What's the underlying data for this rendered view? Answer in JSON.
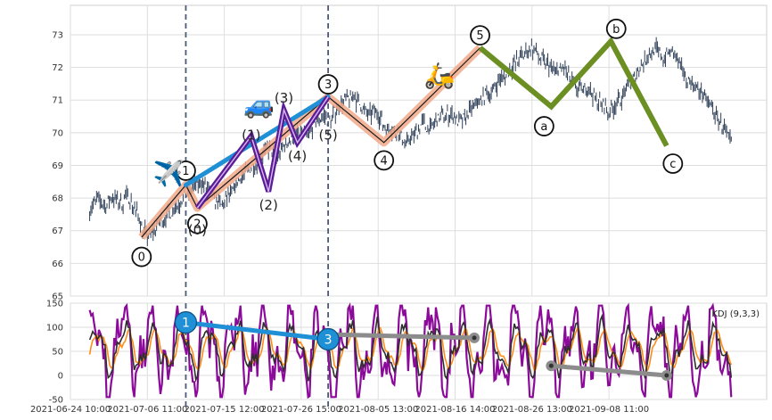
{
  "chart_data": {
    "type": "line",
    "title": "",
    "price_panel": {
      "ylim": [
        65,
        73.9
      ],
      "yticks": [
        "65",
        "66",
        "67",
        "68",
        "69",
        "70",
        "71",
        "72",
        "73"
      ],
      "grid": true,
      "price_series": [
        [
          0.0,
          67.7
        ],
        [
          0.4,
          67.95
        ],
        [
          0.8,
          67.7
        ],
        [
          1.2,
          68.05
        ],
        [
          1.6,
          67.8
        ],
        [
          2.0,
          68.1
        ],
        [
          2.4,
          67.6
        ],
        [
          2.7,
          67.2
        ],
        [
          3.0,
          66.8
        ],
        [
          3.3,
          67.0
        ],
        [
          3.7,
          67.3
        ],
        [
          4.1,
          67.5
        ],
        [
          4.5,
          67.75
        ],
        [
          4.9,
          68.0
        ],
        [
          5.4,
          68.3
        ],
        [
          5.8,
          68.5
        ],
        [
          6.2,
          68.2
        ],
        [
          6.6,
          67.9
        ],
        [
          6.9,
          67.75
        ],
        [
          7.3,
          68.1
        ],
        [
          7.7,
          68.5
        ],
        [
          8.1,
          68.8
        ],
        [
          8.5,
          69.0
        ],
        [
          8.9,
          69.3
        ],
        [
          9.3,
          69.5
        ],
        [
          9.7,
          69.2
        ],
        [
          10.1,
          69.6
        ],
        [
          10.5,
          69.8
        ],
        [
          10.9,
          70.1
        ],
        [
          11.3,
          69.9
        ],
        [
          11.7,
          70.3
        ],
        [
          12.1,
          70.5
        ],
        [
          12.5,
          70.4
        ],
        [
          12.9,
          70.8
        ],
        [
          13.3,
          71.0
        ],
        [
          13.7,
          71.15
        ],
        [
          14.1,
          70.8
        ],
        [
          14.5,
          70.5
        ],
        [
          14.9,
          70.7
        ],
        [
          15.3,
          70.2
        ],
        [
          15.7,
          70.1
        ],
        [
          16.1,
          69.9
        ],
        [
          16.5,
          69.7
        ],
        [
          16.9,
          70.0
        ],
        [
          17.3,
          70.3
        ],
        [
          17.7,
          70.1
        ],
        [
          18.1,
          70.4
        ],
        [
          18.5,
          70.6
        ],
        [
          18.9,
          70.5
        ],
        [
          19.3,
          70.3
        ],
        [
          19.7,
          70.6
        ],
        [
          20.1,
          70.9
        ],
        [
          20.5,
          71.1
        ],
        [
          20.9,
          71.3
        ],
        [
          21.3,
          71.6
        ],
        [
          21.7,
          71.8
        ],
        [
          22.1,
          72.1
        ],
        [
          22.6,
          72.4
        ],
        [
          23.0,
          72.6
        ],
        [
          23.4,
          72.3
        ],
        [
          23.8,
          72.1
        ],
        [
          24.2,
          71.9
        ],
        [
          24.6,
          72.0
        ],
        [
          25.0,
          71.6
        ],
        [
          25.4,
          71.3
        ],
        [
          25.8,
          71.4
        ],
        [
          26.2,
          71.1
        ],
        [
          26.6,
          70.9
        ],
        [
          27.0,
          70.6
        ],
        [
          27.4,
          70.9
        ],
        [
          27.8,
          71.2
        ],
        [
          28.2,
          71.6
        ],
        [
          28.6,
          72.0
        ],
        [
          29.0,
          72.3
        ],
        [
          29.4,
          72.6
        ],
        [
          29.8,
          72.3
        ],
        [
          30.2,
          72.5
        ],
        [
          30.6,
          72.1
        ],
        [
          31.0,
          71.7
        ],
        [
          31.4,
          71.5
        ],
        [
          31.8,
          71.2
        ],
        [
          32.2,
          70.9
        ],
        [
          32.6,
          70.5
        ],
        [
          33.0,
          70.1
        ],
        [
          33.4,
          69.6
        ]
      ]
    },
    "kdj_panel": {
      "label": "KDJ (9,3,3)",
      "ylim": [
        -50,
        150
      ],
      "yticks": [
        "-50",
        "0",
        "50",
        "100",
        "150"
      ]
    },
    "xlim": [
      -1.0,
      35.2
    ],
    "x_ticks": [
      {
        "x": -1.0,
        "label": "2021-06-24 10:00"
      },
      {
        "x": 3.0,
        "label": "2021-07-06 11:00"
      },
      {
        "x": 7.0,
        "label": "2021-07-15 12:00"
      },
      {
        "x": 11.0,
        "label": "2021-07-26 15:00"
      },
      {
        "x": 15.0,
        "label": "2021-08-05 13:00"
      },
      {
        "x": 19.0,
        "label": "2021-08-16 14:00"
      },
      {
        "x": 23.0,
        "label": "2021-08-26 13:00"
      },
      {
        "x": 27.0,
        "label": "2021-09-08 11:00"
      }
    ],
    "vertical_markers": [
      5.0,
      12.4
    ],
    "impulse_wave": [
      {
        "x": 2.7,
        "y": 66.8,
        "label": "0"
      },
      {
        "x": 5.0,
        "y": 68.4,
        "label": "1"
      },
      {
        "x": 5.6,
        "y": 67.7,
        "label": "2"
      },
      {
        "x": 12.4,
        "y": 71.1,
        "label": "3"
      },
      {
        "x": 15.3,
        "y": 69.7,
        "label": "4"
      },
      {
        "x": 20.3,
        "y": 72.6,
        "label": "5"
      }
    ],
    "inner_wave": [
      {
        "x": 5.6,
        "y": 67.7,
        "label": "(0)"
      },
      {
        "x": 8.4,
        "y": 69.9,
        "label": "(1)"
      },
      {
        "x": 9.3,
        "y": 68.2,
        "label": "(2)"
      },
      {
        "x": 10.1,
        "y": 70.7,
        "label": "(3)"
      },
      {
        "x": 10.8,
        "y": 69.7,
        "label": "(4)"
      },
      {
        "x": 12.4,
        "y": 71.1,
        "label": "(5)"
      }
    ],
    "corrective_wave": [
      {
        "x": 20.3,
        "y": 72.6,
        "label": "5"
      },
      {
        "x": 24.0,
        "y": 70.8,
        "label": "a"
      },
      {
        "x": 27.1,
        "y": 72.8,
        "label": "b"
      },
      {
        "x": 30.0,
        "y": 69.6,
        "label": "c"
      }
    ],
    "trend_line": [
      {
        "x": 5.0,
        "y": 68.4
      },
      {
        "x": 12.4,
        "y": 71.1
      }
    ],
    "kdj_divergence": [
      {
        "x": 5.0,
        "y": 110,
        "label": "1"
      },
      {
        "x": 12.4,
        "y": 75,
        "label": "3"
      }
    ],
    "kdj_gray_lines": [
      [
        {
          "x": 12.4,
          "y": 85
        },
        {
          "x": 20.0,
          "y": 78
        }
      ],
      [
        {
          "x": 24.0,
          "y": 20
        },
        {
          "x": 30.0,
          "y": 0
        }
      ]
    ],
    "markers": {
      "plane": {
        "x": 4.1,
        "y": 68.5,
        "glyph": "✈️"
      },
      "car": {
        "x": 8.8,
        "y": 70.6,
        "glyph": "🚙"
      },
      "scooter": {
        "x": 18.2,
        "y": 71.5,
        "glyph": "🛵"
      }
    },
    "colors": {
      "price": "#2e3f58",
      "impulse": "#f2a98a",
      "inner": "#5b1d96",
      "corrective": "#6b8f23",
      "trend": "#1f8fd6",
      "marker_line": "#4b5a78",
      "kdj_k": "#2e2e2e",
      "kdj_d": "#ff8c1a",
      "kdj_j": "#8b0a9a",
      "kdj_gray": "#8c8c8c",
      "bubble": "#1f8fd6"
    }
  }
}
